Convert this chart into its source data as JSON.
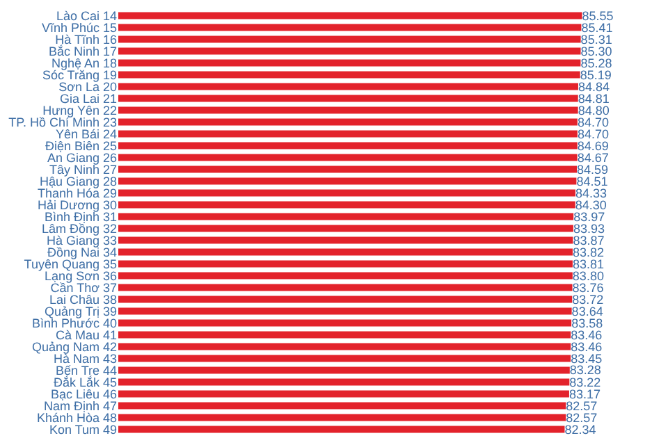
{
  "chart_data": {
    "type": "bar",
    "orientation": "horizontal",
    "categories": [
      "Lào Cai 14",
      "Vĩnh Phúc 15",
      "Hà Tĩnh 16",
      "Bắc Ninh 17",
      "Nghệ An 18",
      "Sóc Trăng 19",
      "Sơn La 20",
      "Gia Lai 21",
      "Hưng Yên 22",
      "TP. Hồ Chí Minh 23",
      "Yên Bái 24",
      "Điện Biên 25",
      "An Giang 26",
      "Tây Ninh 27",
      "Hậu Giang 28",
      "Thanh Hóa 29",
      "Hải Dương 30",
      "Bình Định 31",
      "Lâm Đồng 32",
      "Hà Giang 33",
      "Đồng Nai 34",
      "Tuyên Quang 35",
      "Lạng Sơn 36",
      "Cần Thơ 37",
      "Lai Châu 38",
      "Quảng Trị 39",
      "Bình Phước 40",
      "Cà Mau 41",
      "Quảng Nam 42",
      "Hà Nam 43",
      "Bến Tre 44",
      "Đắk Lắk 45",
      "Bạc Liêu 46",
      "Nam Định 47",
      "Khánh Hòa 48",
      "Kon Tum 49"
    ],
    "values": [
      85.55,
      85.41,
      85.31,
      85.3,
      85.28,
      85.19,
      84.84,
      84.81,
      84.8,
      84.7,
      84.7,
      84.69,
      84.67,
      84.59,
      84.51,
      84.33,
      84.3,
      83.97,
      83.93,
      83.87,
      83.82,
      83.81,
      83.8,
      83.76,
      83.72,
      83.64,
      83.58,
      83.46,
      83.46,
      83.45,
      83.28,
      83.22,
      83.17,
      82.57,
      82.57,
      82.34
    ],
    "value_labels": [
      "85.55",
      "85.41",
      "85.31",
      "85.30",
      "85.28",
      "85.19",
      "84.84",
      "84.81",
      "84.80",
      "84.70",
      "84.70",
      "84.69",
      "84.67",
      "84.59",
      "84.51",
      "84.33",
      "84.30",
      "83.97",
      "83.93",
      "83.87",
      "83.82",
      "83.81",
      "83.80",
      "83.76",
      "83.72",
      "83.64",
      "83.58",
      "83.46",
      "83.46",
      "83.45",
      "83.28",
      "83.22",
      "83.17",
      "82.57",
      "82.57",
      "82.34"
    ],
    "color": "#e3222b",
    "xlim": [
      0,
      86
    ],
    "tick_labels": "y"
  }
}
